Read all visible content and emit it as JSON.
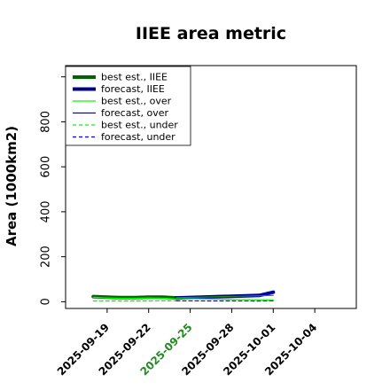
{
  "chart_data": {
    "type": "line",
    "title": "IIEE area metric",
    "xlabel": "",
    "ylabel": "Area (1000km2)",
    "ylim": [
      -30,
      1050
    ],
    "xlim": [
      "2025-09-16",
      "2025-10-07"
    ],
    "yticks": [
      0,
      200,
      400,
      600,
      800
    ],
    "xticks": [
      {
        "label": "2025-09-19",
        "color": "#000000"
      },
      {
        "label": "2025-09-22",
        "color": "#000000"
      },
      {
        "label": "2025-09-25",
        "color": "#228B22"
      },
      {
        "label": "2025-09-28",
        "color": "#000000"
      },
      {
        "label": "2025-10-01",
        "color": "#000000"
      },
      {
        "label": "2025-10-04",
        "color": "#000000"
      }
    ],
    "grid": false,
    "legend_position": "top-left",
    "series": [
      {
        "name": "best est., IIEE",
        "color": "#006400",
        "width": 4,
        "dash": "",
        "x": [
          "2025-09-18",
          "2025-09-19",
          "2025-09-20",
          "2025-09-21",
          "2025-09-22",
          "2025-09-23",
          "2025-09-24"
        ],
        "y": [
          23,
          20,
          18,
          18,
          20,
          20,
          17
        ]
      },
      {
        "name": "forecast, IIEE",
        "color": "#00008B",
        "width": 4,
        "dash": "",
        "x": [
          "2025-09-24",
          "2025-09-30",
          "2025-10-01"
        ],
        "y": [
          17,
          28,
          42
        ]
      },
      {
        "name": "best est., over",
        "color": "#00FF00",
        "width": 1.2,
        "dash": "",
        "x": [
          "2025-09-18",
          "2025-09-19",
          "2025-09-20",
          "2025-09-21",
          "2025-09-22",
          "2025-09-23",
          "2025-09-24"
        ],
        "y": [
          20,
          17,
          15,
          15,
          17,
          16,
          13
        ]
      },
      {
        "name": "forecast, over",
        "color": "#0000FF",
        "width": 1.2,
        "dash": "",
        "x": [
          "2025-09-24",
          "2025-09-30",
          "2025-10-01"
        ],
        "y": [
          13,
          25,
          38
        ]
      },
      {
        "name": "best est., under",
        "color": "#00FF00",
        "width": 1.2,
        "dash": "4,3",
        "x": [
          "2025-09-18",
          "2025-09-19",
          "2025-09-20",
          "2025-09-21",
          "2025-09-22",
          "2025-09-23",
          "2025-09-24"
        ],
        "y": [
          3,
          3,
          3,
          3,
          3,
          4,
          4
        ]
      },
      {
        "name": "forecast, under",
        "color": "#0000FF",
        "width": 1.2,
        "dash": "4,3",
        "x": [
          "2025-09-24",
          "2025-09-30",
          "2025-10-01"
        ],
        "y": [
          4,
          3,
          4
        ]
      }
    ],
    "extra_lines": [
      {
        "color": "#228B22",
        "width": 1.2,
        "dash": "",
        "x": [
          "2025-09-24",
          "2025-10-01"
        ],
        "y": [
          18,
          28
        ]
      },
      {
        "color": "#00FF00",
        "width": 1.2,
        "dash": "",
        "x": [
          "2025-09-24",
          "2025-10-01"
        ],
        "y": [
          14,
          8
        ]
      }
    ]
  }
}
